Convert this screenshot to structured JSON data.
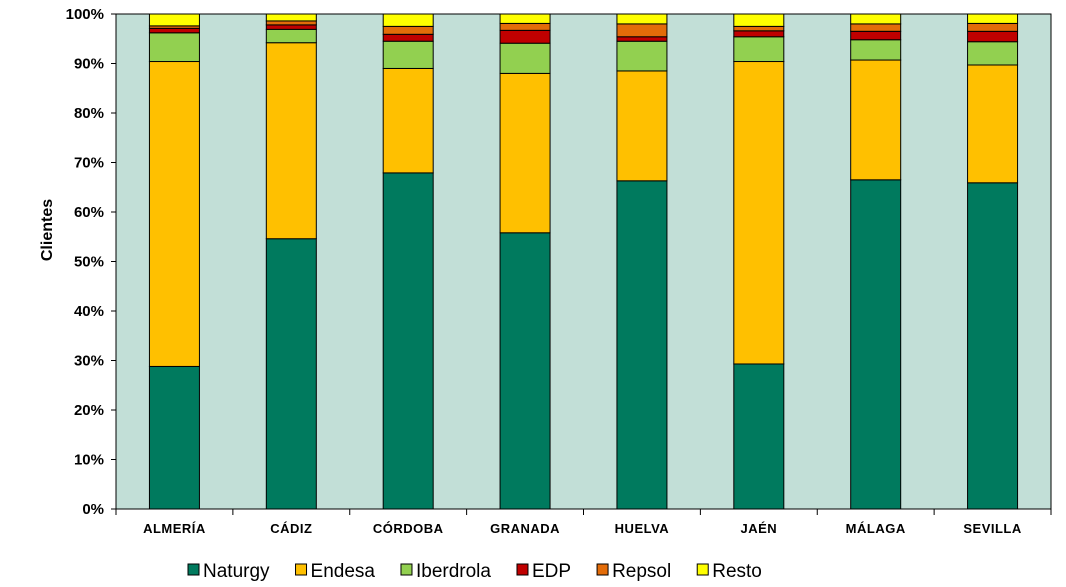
{
  "chart_data": {
    "type": "bar",
    "stacked": true,
    "percent": true,
    "title": "",
    "xlabel": "",
    "ylabel": "Clientes",
    "ylim": [
      0,
      100
    ],
    "yticks": [
      "0%",
      "10%",
      "20%",
      "30%",
      "40%",
      "50%",
      "60%",
      "70%",
      "80%",
      "90%",
      "100%"
    ],
    "categories": [
      "ALMERÍA",
      "CÁDIZ",
      "CÓRDOBA",
      "GRANADA",
      "HUELVA",
      "JAÉN",
      "MÁLAGA",
      "SEVILLA"
    ],
    "series": [
      {
        "name": "Naturgy",
        "color": "#007A5E",
        "values": [
          28.8,
          54.6,
          67.9,
          55.8,
          66.3,
          29.3,
          66.5,
          65.9
        ]
      },
      {
        "name": "Endesa",
        "color": "#FFC000",
        "values": [
          61.6,
          39.6,
          21.1,
          32.2,
          22.2,
          61.1,
          24.2,
          23.8
        ]
      },
      {
        "name": "Iberdrola",
        "color": "#92D050",
        "values": [
          5.8,
          2.7,
          5.5,
          6.1,
          6.0,
          5.0,
          4.1,
          4.7
        ]
      },
      {
        "name": "EDP",
        "color": "#C00000",
        "values": [
          0.9,
          0.9,
          1.4,
          2.6,
          0.9,
          1.2,
          1.7,
          2.1
        ]
      },
      {
        "name": "Repsol",
        "color": "#E36C09",
        "values": [
          0.5,
          0.8,
          1.6,
          1.4,
          2.6,
          0.9,
          1.5,
          1.6
        ]
      },
      {
        "name": "Resto",
        "color": "#FFFF00",
        "values": [
          2.4,
          1.4,
          2.5,
          1.9,
          2.0,
          2.5,
          2.0,
          1.9
        ]
      }
    ],
    "plot_background": "#C2DFD7",
    "grid": false,
    "legend_position": "bottom"
  }
}
